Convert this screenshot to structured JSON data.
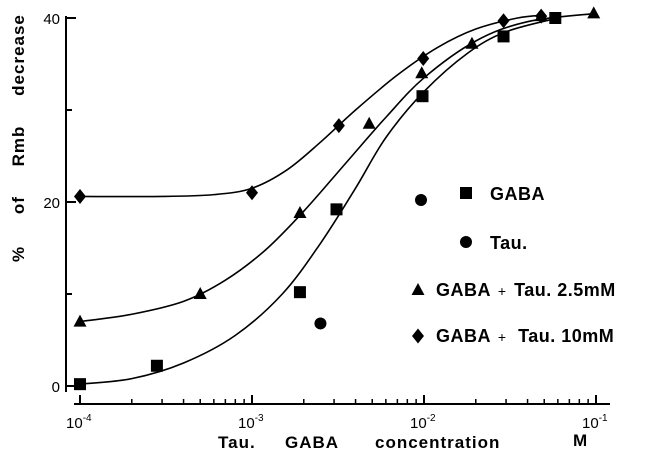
{
  "chart_data": {
    "type": "scatter",
    "x_scale": "log",
    "xlim": [
      0.0001,
      0.1
    ],
    "ylim": [
      0,
      40
    ],
    "grid": false,
    "legend_position": "right",
    "xlabel_parts": {
      "a": "Tau.",
      "b": "GABA",
      "c": "concentration",
      "unit": "M"
    },
    "ylabel_words": [
      "%",
      "of",
      "Rmb",
      "decrease"
    ],
    "x_ticks": [
      {
        "base": "10",
        "exp": "-4",
        "value": 0.0001
      },
      {
        "base": "10",
        "exp": "-3",
        "value": 0.001
      },
      {
        "base": "10",
        "exp": "-2",
        "value": 0.01
      },
      {
        "base": "10",
        "exp": "-1",
        "value": 0.1
      }
    ],
    "y_ticks": [
      {
        "label": "0",
        "value": 0
      },
      {
        "label": "20",
        "value": 20
      },
      {
        "label": "40",
        "value": 40
      }
    ],
    "series": [
      {
        "key": "gaba",
        "marker": "square",
        "points": [
          {
            "x": 0.0001,
            "y": 0.2
          },
          {
            "x": 0.00028,
            "y": 2.2
          },
          {
            "x": 0.0019,
            "y": 10.2
          },
          {
            "x": 0.0031,
            "y": 19.2
          },
          {
            "x": 0.0098,
            "y": 31.5
          },
          {
            "x": 0.029,
            "y": 38.0
          },
          {
            "x": 0.058,
            "y": 40.0
          }
        ],
        "curve": [
          {
            "x": 0.0001,
            "y": 0.2
          },
          {
            "x": 0.0002,
            "y": 0.8
          },
          {
            "x": 0.0004,
            "y": 2.5
          },
          {
            "x": 0.0008,
            "y": 5.5
          },
          {
            "x": 0.0015,
            "y": 10.0
          },
          {
            "x": 0.0025,
            "y": 15.5
          },
          {
            "x": 0.004,
            "y": 21.5
          },
          {
            "x": 0.006,
            "y": 27.0
          },
          {
            "x": 0.01,
            "y": 32.0
          },
          {
            "x": 0.018,
            "y": 36.2
          },
          {
            "x": 0.03,
            "y": 38.5
          },
          {
            "x": 0.06,
            "y": 40.0
          }
        ]
      },
      {
        "key": "tau",
        "marker": "circle",
        "points": [
          {
            "x": 0.0025,
            "y": 6.8
          }
        ]
      },
      {
        "key": "gaba_tau_2_5",
        "marker": "triangle",
        "points": [
          {
            "x": 0.0001,
            "y": 7.0
          },
          {
            "x": 0.0005,
            "y": 10.0
          },
          {
            "x": 0.0019,
            "y": 18.8
          },
          {
            "x": 0.0048,
            "y": 28.5
          },
          {
            "x": 0.0097,
            "y": 34.0
          },
          {
            "x": 0.019,
            "y": 37.2
          },
          {
            "x": 0.048,
            "y": 40.2
          },
          {
            "x": 0.097,
            "y": 40.5
          }
        ],
        "curve": [
          {
            "x": 0.0001,
            "y": 7.0
          },
          {
            "x": 0.0002,
            "y": 7.8
          },
          {
            "x": 0.0004,
            "y": 9.2
          },
          {
            "x": 0.0007,
            "y": 11.5
          },
          {
            "x": 0.0012,
            "y": 14.8
          },
          {
            "x": 0.002,
            "y": 19.0
          },
          {
            "x": 0.0035,
            "y": 24.2
          },
          {
            "x": 0.006,
            "y": 29.2
          },
          {
            "x": 0.01,
            "y": 33.5
          },
          {
            "x": 0.02,
            "y": 37.5
          },
          {
            "x": 0.04,
            "y": 39.6
          },
          {
            "x": 0.1,
            "y": 40.5
          }
        ]
      },
      {
        "key": "gaba_tau_10",
        "marker": "diamond",
        "points": [
          {
            "x": 0.0001,
            "y": 20.6
          },
          {
            "x": 0.001,
            "y": 21.0
          },
          {
            "x": 0.0032,
            "y": 28.3
          },
          {
            "x": 0.0099,
            "y": 35.6
          },
          {
            "x": 0.029,
            "y": 39.7
          },
          {
            "x": 0.048,
            "y": 40.2
          }
        ],
        "curve": [
          {
            "x": 0.0001,
            "y": 20.6
          },
          {
            "x": 0.0003,
            "y": 20.6
          },
          {
            "x": 0.0006,
            "y": 20.8
          },
          {
            "x": 0.001,
            "y": 21.5
          },
          {
            "x": 0.0016,
            "y": 23.5
          },
          {
            "x": 0.0025,
            "y": 26.5
          },
          {
            "x": 0.004,
            "y": 30.0
          },
          {
            "x": 0.007,
            "y": 33.8
          },
          {
            "x": 0.012,
            "y": 36.8
          },
          {
            "x": 0.02,
            "y": 38.8
          },
          {
            "x": 0.035,
            "y": 40.0
          },
          {
            "x": 0.05,
            "y": 40.3
          }
        ]
      }
    ],
    "legend": [
      {
        "markers": [
          "circle",
          "square"
        ],
        "label": "GABA"
      },
      {
        "markers": [
          "circle"
        ],
        "label": "Tau."
      },
      {
        "markers": [
          "triangle"
        ],
        "label_main": "GABA",
        "label_plus": "+",
        "label_rest": "Tau.  2.5mM"
      },
      {
        "markers": [
          "diamond"
        ],
        "label_main": "GABA",
        "label_plus": "+",
        "label_rest": "Tau.  10mM"
      }
    ]
  }
}
